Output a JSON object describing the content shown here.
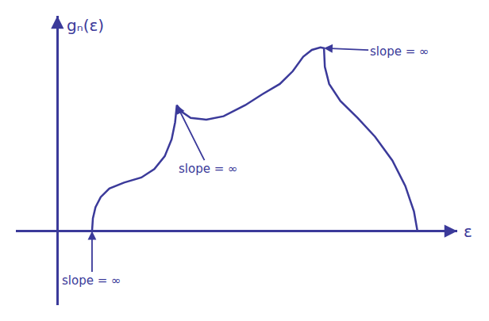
{
  "chart_data": {
    "type": "line",
    "x_label": "ε",
    "y_label": "gₙ(ε)",
    "x": [
      0.4,
      0.41,
      0.44,
      0.5,
      0.6,
      0.77,
      0.97,
      1.12,
      1.24,
      1.32,
      1.36,
      1.38,
      1.44,
      1.54,
      1.72,
      1.92,
      2.17,
      2.37,
      2.57,
      2.72,
      2.84,
      2.94,
      3.04,
      3.08,
      3.09,
      3.14,
      3.27,
      3.47,
      3.67,
      3.87,
      4.02,
      4.12,
      4.16
    ],
    "values": [
      0,
      0.15,
      0.28,
      0.4,
      0.5,
      0.57,
      0.63,
      0.73,
      0.88,
      1.08,
      1.28,
      1.48,
      1.4,
      1.33,
      1.31,
      1.35,
      1.48,
      1.61,
      1.73,
      1.88,
      2.05,
      2.13,
      2.16,
      2.15,
      1.93,
      1.73,
      1.53,
      1.33,
      1.11,
      0.83,
      0.53,
      0.23,
      0
    ],
    "color": "#3b3a9a",
    "xlim": [
      -0.48,
      4.62
    ],
    "ylim": [
      -0.87,
      2.53
    ],
    "xticks": [],
    "yticks": [],
    "tick_labels": false,
    "grid": false,
    "annotations": [
      {
        "text": "slope = ∞",
        "x": 0.4,
        "y": 0
      },
      {
        "text": "slope = ∞",
        "x": 1.38,
        "y": 1.48
      },
      {
        "text": "slope = ∞",
        "x": 3.08,
        "y": 2.15
      }
    ]
  }
}
